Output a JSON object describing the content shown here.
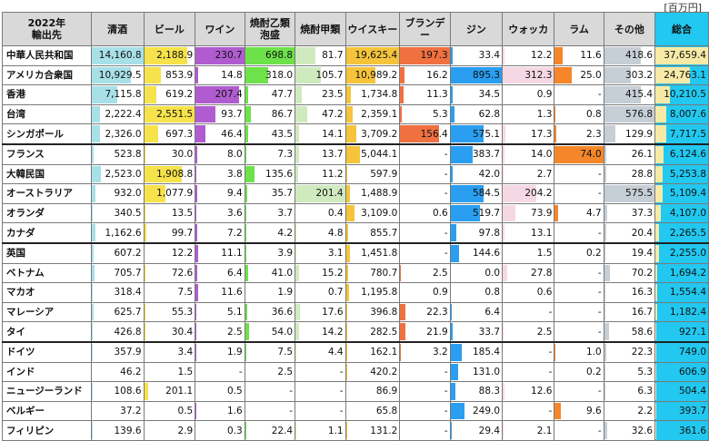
{
  "unit_label": "[百万円]",
  "header": {
    "country": "2022年\n輸出先",
    "columns": [
      {
        "label": "清酒",
        "color": "#a8e0e8"
      },
      {
        "label": "ビール",
        "color": "#f6e24a"
      },
      {
        "label": "ワイン",
        "color": "#b05cd0"
      },
      {
        "label": "焼酎乙類\n泡盛",
        "color": "#6ee24a"
      },
      {
        "label": "焼酎甲類",
        "color": "#d0eac0"
      },
      {
        "label": "ウイスキー",
        "color": "#f5c43a"
      },
      {
        "label": "ブランデー",
        "color": "#f07040"
      },
      {
        "label": "ジン",
        "color": "#2a9ef0"
      },
      {
        "label": "ウォッカ",
        "color": "#f6d8e4"
      },
      {
        "label": "ラム",
        "color": "#f5862a"
      },
      {
        "label": "その他",
        "color": "#c6ced6"
      },
      {
        "label": "総合",
        "color": "#f7eaa6"
      }
    ]
  },
  "rows": [
    {
      "country": "中華人民共和国",
      "values": [
        "14,160.8",
        "2,188.9",
        "230.7",
        "698.8",
        "81.7",
        "19,625.4",
        "197.3",
        "33.4",
        "12.2",
        "11.6",
        "418.6",
        "37,659.4"
      ],
      "bars": [
        1.0,
        0.86,
        1.0,
        1.0,
        0.4,
        1.0,
        1.0,
        0.04,
        0.04,
        0.16,
        0.73,
        1.0
      ],
      "sep": false
    },
    {
      "country": "アメリカ合衆国",
      "values": [
        "10,929.5",
        "853.9",
        "14.8",
        "318.0",
        "105.7",
        "10,989.2",
        "16.2",
        "895.3",
        "312.3",
        "25.0",
        "303.2",
        "24,763.1"
      ],
      "bars": [
        0.77,
        0.33,
        0.06,
        0.46,
        0.52,
        0.56,
        0.08,
        1.0,
        1.0,
        0.34,
        0.53,
        0.66
      ],
      "sep": false
    },
    {
      "country": "香港",
      "values": [
        "7,115.8",
        "619.2",
        "207.4",
        "47.7",
        "23.5",
        "1,734.8",
        "11.3",
        "34.5",
        "0.9",
        "-",
        "415.4",
        "10,210.5"
      ],
      "bars": [
        0.5,
        0.24,
        0.9,
        0.07,
        0.12,
        0.09,
        0.06,
        0.04,
        0.0,
        0.0,
        0.72,
        0.27
      ],
      "sep": false
    },
    {
      "country": "台湾",
      "values": [
        "2,222.4",
        "2,551.5",
        "93.7",
        "86.7",
        "47.2",
        "2,359.1",
        "5.3",
        "62.8",
        "1.3",
        "0.8",
        "576.8",
        "8,007.6"
      ],
      "bars": [
        0.16,
        1.0,
        0.41,
        0.12,
        0.23,
        0.12,
        0.03,
        0.07,
        0.0,
        0.01,
        1.0,
        0.21
      ],
      "sep": false
    },
    {
      "country": "シンガポール",
      "values": [
        "2,326.0",
        "697.3",
        "46.4",
        "43.5",
        "14.1",
        "3,709.2",
        "156.4",
        "575.1",
        "17.3",
        "2.3",
        "129.9",
        "7,717.5"
      ],
      "bars": [
        0.16,
        0.27,
        0.2,
        0.06,
        0.07,
        0.19,
        0.79,
        0.64,
        0.06,
        0.03,
        0.23,
        0.2
      ],
      "sep": false
    },
    {
      "country": "フランス",
      "values": [
        "523.8",
        "30.0",
        "8.0",
        "7.3",
        "13.7",
        "5,044.1",
        "-",
        "383.7",
        "14.0",
        "74.0",
        "26.1",
        "6,124.6"
      ],
      "bars": [
        0.04,
        0.01,
        0.03,
        0.01,
        0.07,
        0.26,
        0.0,
        0.43,
        0.04,
        1.0,
        0.05,
        0.16
      ],
      "sep": true
    },
    {
      "country": "大韓民国",
      "values": [
        "2,523.0",
        "1,908.8",
        "3.8",
        "135.6",
        "11.2",
        "597.9",
        "-",
        "42.0",
        "2.7",
        "-",
        "28.8",
        "5,253.8"
      ],
      "bars": [
        0.18,
        0.75,
        0.02,
        0.19,
        0.06,
        0.03,
        0.0,
        0.05,
        0.01,
        0.0,
        0.05,
        0.14
      ],
      "sep": false
    },
    {
      "country": "オーストラリア",
      "values": [
        "932.0",
        "1,077.9",
        "9.4",
        "35.7",
        "201.4",
        "1,488.9",
        "-",
        "584.5",
        "204.2",
        "-",
        "575.5",
        "5,109.4"
      ],
      "bars": [
        0.07,
        0.42,
        0.04,
        0.05,
        1.0,
        0.08,
        0.0,
        0.65,
        0.65,
        0.0,
        1.0,
        0.14
      ],
      "sep": false
    },
    {
      "country": "オランダ",
      "values": [
        "340.5",
        "13.5",
        "3.6",
        "3.7",
        "0.4",
        "3,109.0",
        "0.6",
        "519.7",
        "73.9",
        "4.7",
        "37.3",
        "4,107.0"
      ],
      "bars": [
        0.02,
        0.01,
        0.02,
        0.01,
        0.0,
        0.16,
        0.0,
        0.58,
        0.24,
        0.06,
        0.06,
        0.11
      ],
      "sep": false
    },
    {
      "country": "カナダ",
      "values": [
        "1,162.6",
        "99.7",
        "7.2",
        "4.2",
        "4.8",
        "855.7",
        "-",
        "97.8",
        "13.1",
        "-",
        "20.4",
        "2,265.5"
      ],
      "bars": [
        0.08,
        0.04,
        0.03,
        0.01,
        0.02,
        0.04,
        0.0,
        0.11,
        0.04,
        0.0,
        0.04,
        0.06
      ],
      "sep": false
    },
    {
      "country": "英国",
      "values": [
        "607.2",
        "12.2",
        "11.1",
        "3.9",
        "3.1",
        "1,451.8",
        "-",
        "144.6",
        "1.5",
        "0.2",
        "19.4",
        "2,255.0"
      ],
      "bars": [
        0.04,
        0.0,
        0.05,
        0.01,
        0.02,
        0.07,
        0.0,
        0.16,
        0.0,
        0.0,
        0.03,
        0.06
      ],
      "sep": true
    },
    {
      "country": "ベトナム",
      "values": [
        "705.7",
        "72.6",
        "6.4",
        "41.0",
        "15.2",
        "780.7",
        "2.5",
        "0.0",
        "27.8",
        "-",
        "70.2",
        "1,694.2"
      ],
      "bars": [
        0.05,
        0.03,
        0.03,
        0.06,
        0.08,
        0.04,
        0.01,
        0.0,
        0.09,
        0.0,
        0.12,
        0.04
      ],
      "sep": false
    },
    {
      "country": "マカオ",
      "values": [
        "318.4",
        "7.5",
        "11.6",
        "1.9",
        "0.7",
        "1,195.8",
        "0.9",
        "0.8",
        "0.6",
        "-",
        "16.3",
        "1,554.4"
      ],
      "bars": [
        0.02,
        0.0,
        0.05,
        0.0,
        0.0,
        0.06,
        0.0,
        0.0,
        0.0,
        0.0,
        0.03,
        0.04
      ],
      "sep": false
    },
    {
      "country": "マレーシア",
      "values": [
        "625.7",
        "55.3",
        "5.1",
        "36.6",
        "17.6",
        "396.8",
        "22.3",
        "6.4",
        "-",
        "-",
        "16.7",
        "1,182.4"
      ],
      "bars": [
        0.04,
        0.02,
        0.02,
        0.05,
        0.09,
        0.02,
        0.11,
        0.01,
        0.0,
        0.0,
        0.03,
        0.03
      ],
      "sep": false
    },
    {
      "country": "タイ",
      "values": [
        "426.8",
        "30.4",
        "2.5",
        "54.0",
        "14.2",
        "282.5",
        "21.9",
        "33.7",
        "2.5",
        "-",
        "58.6",
        "927.1"
      ],
      "bars": [
        0.03,
        0.01,
        0.01,
        0.08,
        0.07,
        0.01,
        0.11,
        0.04,
        0.01,
        0.0,
        0.1,
        0.02
      ],
      "sep": false
    },
    {
      "country": "ドイツ",
      "values": [
        "357.9",
        "3.4",
        "1.9",
        "7.5",
        "4.4",
        "162.1",
        "3.2",
        "185.4",
        "-",
        "1.0",
        "22.3",
        "749.0"
      ],
      "bars": [
        0.03,
        0.0,
        0.01,
        0.01,
        0.02,
        0.01,
        0.02,
        0.21,
        0.0,
        0.01,
        0.04,
        0.02
      ],
      "sep": true
    },
    {
      "country": "インド",
      "values": [
        "46.2",
        "1.5",
        "-",
        "2.5",
        "-",
        "420.2",
        "-",
        "131.0",
        "-",
        "0.2",
        "5.3",
        "606.9"
      ],
      "bars": [
        0.0,
        0.0,
        0.0,
        0.0,
        0.0,
        0.02,
        0.0,
        0.15,
        0.0,
        0.0,
        0.01,
        0.02
      ],
      "sep": false
    },
    {
      "country": "ニュージーランド",
      "values": [
        "108.6",
        "201.1",
        "0.5",
        "-",
        "-",
        "86.9",
        "-",
        "88.3",
        "12.6",
        "-",
        "6.3",
        "504.4"
      ],
      "bars": [
        0.01,
        0.08,
        0.0,
        0.0,
        0.0,
        0.0,
        0.0,
        0.1,
        0.04,
        0.0,
        0.01,
        0.01
      ],
      "sep": false
    },
    {
      "country": "ベルギー",
      "values": [
        "37.2",
        "0.5",
        "1.6",
        "-",
        "-",
        "65.8",
        "-",
        "249.0",
        "-",
        "9.6",
        "2.2",
        "393.7"
      ],
      "bars": [
        0.0,
        0.0,
        0.01,
        0.0,
        0.0,
        0.0,
        0.0,
        0.28,
        0.0,
        0.13,
        0.0,
        0.01
      ],
      "sep": false
    },
    {
      "country": "フィリピン",
      "values": [
        "139.6",
        "2.9",
        "0.3",
        "22.4",
        "1.1",
        "131.2",
        "-",
        "29.4",
        "2.1",
        "-",
        "32.6",
        "361.6"
      ],
      "bars": [
        0.01,
        0.0,
        0.0,
        0.03,
        0.01,
        0.01,
        0.0,
        0.03,
        0.01,
        0.0,
        0.06,
        0.01
      ],
      "sep": false
    }
  ]
}
